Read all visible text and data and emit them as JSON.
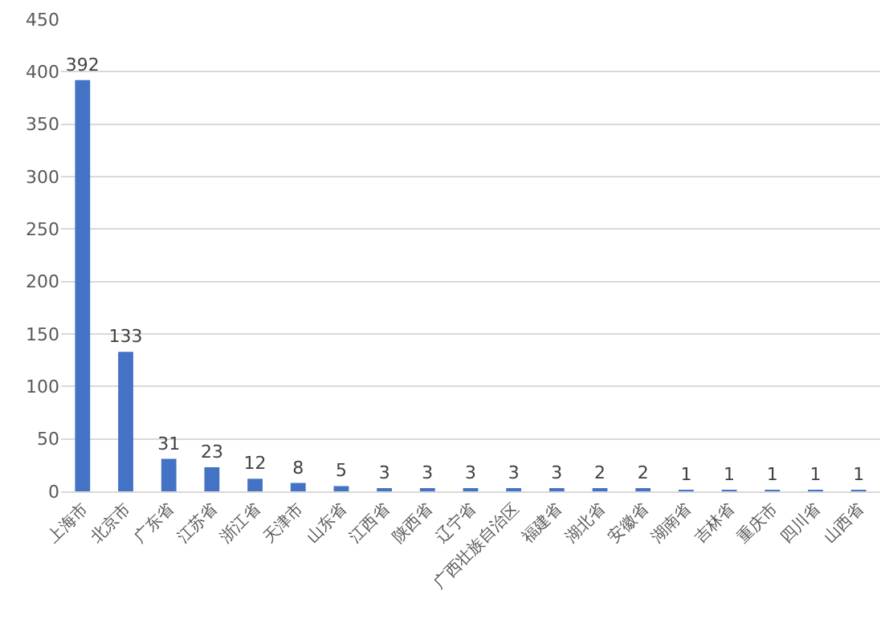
{
  "chart_data": {
    "type": "bar",
    "categories": [
      "上海市",
      "北京市",
      "广东省",
      "江苏省",
      "浙江省",
      "天津市",
      "山东省",
      "江西省",
      "陕西省",
      "辽宁省",
      "广西壮族自治区",
      "福建省",
      "湖北省",
      "安徽省",
      "湖南省",
      "吉林省",
      "重庆市",
      "四川省",
      "山西省"
    ],
    "values": [
      392,
      133,
      31,
      23,
      12,
      8,
      5,
      3,
      3,
      3,
      3,
      3,
      2,
      2,
      1,
      1,
      1,
      1,
      1
    ],
    "color": "#4472c4",
    "ylim": [
      0,
      450
    ],
    "yticks": [
      0,
      50,
      100,
      150,
      200,
      250,
      300,
      350,
      400,
      450
    ],
    "grid": "y",
    "data_labels": true
  }
}
